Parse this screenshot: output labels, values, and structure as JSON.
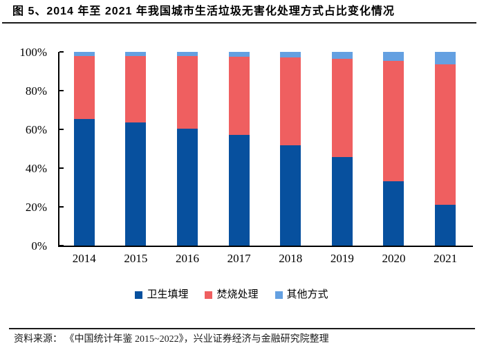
{
  "page": {
    "title": "图 5、2014 年至 2021 年我国城市生活垃圾无害化处理方式占比变化情况",
    "source_note": "资料来源： 《中国统计年鉴 2015~2022》，兴业证券经济与金融研究院整理"
  },
  "chart_data": {
    "type": "bar",
    "stacked": true,
    "title": "图 5、2014 年至 2021 年我国城市生活垃圾无害化处理方式占比变化情况",
    "categories": [
      "2014",
      "2015",
      "2016",
      "2017",
      "2018",
      "2019",
      "2020",
      "2021"
    ],
    "series": [
      {
        "name": "卫生填埋",
        "color": "#07509E",
        "values": [
          65.5,
          63.7,
          60.3,
          57.2,
          51.9,
          45.6,
          33.1,
          20.9
        ]
      },
      {
        "name": "焚烧处理",
        "color": "#EF5F60",
        "values": [
          32.5,
          34.3,
          37.5,
          40.2,
          45.1,
          50.7,
          62.3,
          72.5
        ]
      },
      {
        "name": "其他方式",
        "color": "#64A0E1",
        "values": [
          2.0,
          2.0,
          2.2,
          2.6,
          3.0,
          3.7,
          4.6,
          6.6
        ]
      }
    ],
    "xlabel": "",
    "ylabel": "",
    "ylim": [
      0,
      100
    ],
    "ytick_values": [
      0,
      20,
      40,
      60,
      80,
      100
    ],
    "ytick_labels": [
      "0%",
      "20%",
      "40%",
      "60%",
      "80%",
      "100%"
    ],
    "legend_position": "bottom",
    "grid": false,
    "axis_color": "#000000",
    "background_color": "#ffffff"
  }
}
